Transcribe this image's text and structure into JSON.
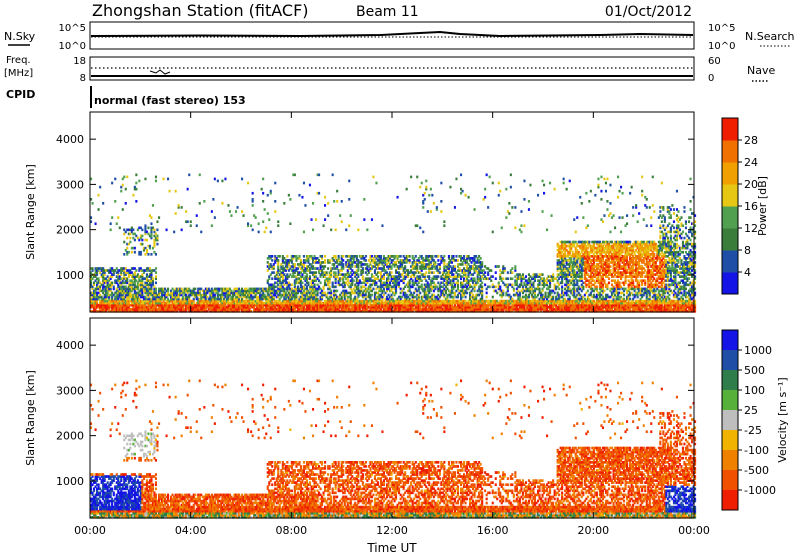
{
  "header": {
    "station": "Zhongshan Station (fitACF)",
    "beam": "Beam 11",
    "date": "01/Oct/2012"
  },
  "nsky_panel": {
    "left_label": "N.Sky",
    "left_ticks": [
      "10^5",
      "10^0"
    ],
    "right_ticks": [
      "10^5",
      "10^0"
    ],
    "right_label": "N.Search"
  },
  "freq_panel": {
    "left_label_line1": "Freq.",
    "left_label_line2": "[MHz]",
    "left_ticks": [
      "18",
      "8"
    ],
    "right_ticks": [
      "60",
      "0"
    ],
    "right_label": "Nave"
  },
  "cpid": {
    "label": "CPID",
    "text": "normal (fast stereo) 153"
  },
  "colors": {
    "power": [
      "#1414e6",
      "#1e4ea6",
      "#3a7d3a",
      "#50a050",
      "#e6c814",
      "#f0a000",
      "#f07000",
      "#f01e00"
    ],
    "velocity": [
      "#1414e6",
      "#1e4ea6",
      "#2e7d4a",
      "#56b03a",
      "#bebebe",
      "#f0b400",
      "#f08000",
      "#f05000",
      "#f01e00"
    ]
  },
  "chart_data": [
    {
      "type": "heatmap",
      "name": "power-panel",
      "xlabel": "",
      "ylabel": "Slant Range [km]",
      "xlim": [
        0,
        24
      ],
      "ylim": [
        180,
        4600
      ],
      "yticks": [
        1000,
        2000,
        3000,
        4000
      ],
      "colorbar": {
        "label": "Power [dB]",
        "range": [
          0,
          32
        ],
        "ticks": [
          "4",
          "8",
          "12",
          "16",
          "20",
          "24",
          "28"
        ]
      }
    },
    {
      "type": "heatmap",
      "name": "velocity-panel",
      "xlabel": "Time UT",
      "ylabel": "Slant Range [km]",
      "xlim": [
        0,
        24
      ],
      "ylim": [
        180,
        4600
      ],
      "xticks": [
        "00:00",
        "04:00",
        "08:00",
        "12:00",
        "16:00",
        "20:00",
        "00:00"
      ],
      "yticks": [
        1000,
        2000,
        3000,
        4000
      ],
      "colorbar": {
        "label": "Velocity [m s⁻¹]",
        "ticks": [
          "1000",
          "500",
          "100",
          "25",
          "-25",
          "-100",
          "-500",
          "-1000"
        ]
      }
    }
  ]
}
